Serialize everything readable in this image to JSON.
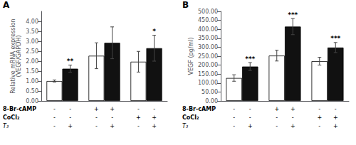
{
  "chart_data": [
    {
      "type": "bar",
      "title": "A",
      "ylabel": "Relative mRNA expression\n(VEGF/GAPDH)",
      "categories": [
        null,
        null,
        null
      ],
      "series": [
        {
          "color": "#ffffff",
          "values": [
            1.0,
            2.27,
            1.97
          ],
          "errors": [
            0.05,
            0.65,
            0.52
          ]
        },
        {
          "color": "#111111",
          "values": [
            1.62,
            2.92,
            2.65
          ],
          "errors": [
            0.18,
            0.8,
            0.65
          ],
          "significance": [
            "**",
            null,
            "*"
          ]
        }
      ],
      "ylim": [
        0,
        4.5
      ],
      "yticks": [
        {
          "value": 0.0,
          "label": "0.00"
        },
        {
          "value": 0.5,
          "label": "0.50"
        },
        {
          "value": 1.0,
          "label": "1.00"
        },
        {
          "value": 1.5,
          "label": "1.50"
        },
        {
          "value": 2.0,
          "label": "2.00"
        },
        {
          "value": 2.5,
          "label": "2.50"
        },
        {
          "value": 3.0,
          "label": "3.00"
        },
        {
          "value": 3.5,
          "label": "3.50"
        },
        {
          "value": 4.0,
          "label": "4.00"
        }
      ],
      "grid": false,
      "edge_color": "#000000",
      "error_color": "#444444",
      "annotations": [
        {
          "text": "8-Br-cAMP",
          "cells": [
            "-",
            "-",
            "+",
            "+",
            "-",
            "-"
          ]
        },
        {
          "text": "CoCl₂",
          "cells": [
            "-",
            "-",
            "-",
            "-",
            "+",
            "+"
          ]
        },
        {
          "text": "T₃",
          "cells": [
            "-",
            "+",
            "-",
            "+",
            "-",
            "+"
          ]
        }
      ]
    },
    {
      "type": "bar",
      "title": "B",
      "ylabel": "VEGF (pg/ml)",
      "categories": [
        null,
        null,
        null
      ],
      "series": [
        {
          "color": "#ffffff",
          "values": [
            128,
            253,
            222
          ],
          "errors": [
            18,
            30,
            22
          ]
        },
        {
          "color": "#111111",
          "values": [
            192,
            415,
            298
          ],
          "errors": [
            22,
            45,
            28
          ],
          "significance": [
            "***",
            "***",
            "***"
          ]
        }
      ],
      "ylim": [
        0,
        500.0
      ],
      "yticks": [
        {
          "value": 0.0,
          "label": "0.00"
        },
        {
          "value": 50.0,
          "label": "50.00"
        },
        {
          "value": 100.0,
          "label": "100.00"
        },
        {
          "value": 150.0,
          "label": "150.00"
        },
        {
          "value": 200.0,
          "label": "200.00"
        },
        {
          "value": 250.0,
          "label": "250.00"
        },
        {
          "value": 300.0,
          "label": "300.00"
        },
        {
          "value": 350.0,
          "label": "350.00"
        },
        {
          "value": 400.0,
          "label": "400.00"
        },
        {
          "value": 450.0,
          "label": "450.00"
        },
        {
          "value": 500.0,
          "label": "500.00"
        }
      ],
      "grid": false,
      "edge_color": "#000000",
      "error_color": "#444444",
      "annotations": [
        {
          "text": "8-Br-cAMP",
          "cells": [
            "-",
            "-",
            "+",
            "+",
            "-",
            "-"
          ]
        },
        {
          "text": "CoCl₂",
          "cells": [
            "-",
            "-",
            "-",
            "-",
            "+",
            "+"
          ]
        },
        {
          "text": "T₃",
          "cells": [
            "-",
            "+",
            "-",
            "+",
            "-",
            "+"
          ]
        }
      ]
    }
  ]
}
